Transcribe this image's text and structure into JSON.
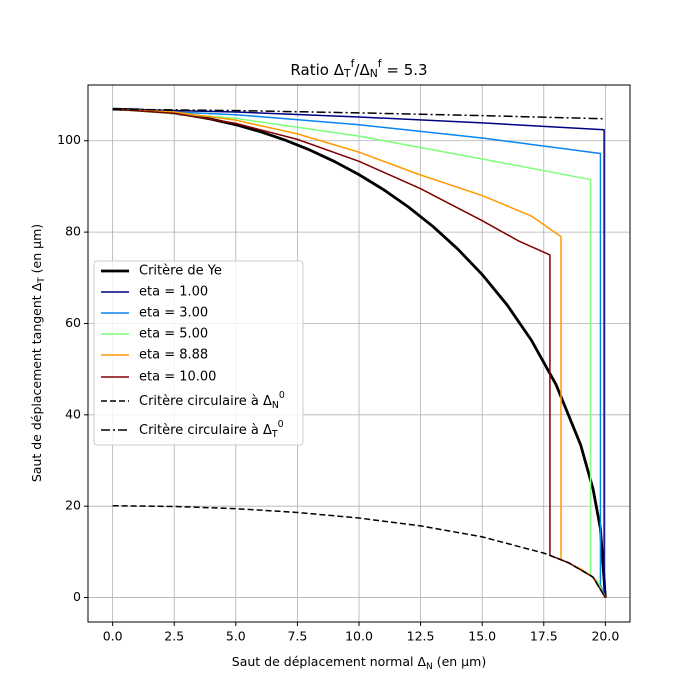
{
  "chart_data": {
    "type": "line",
    "title": [
      "Ratio Δ",
      {
        "sub": "T"
      },
      {
        "sup": "f"
      },
      "/Δ",
      {
        "sub": "N"
      },
      {
        "sup": "f"
      },
      " = 5.3"
    ],
    "x_label": [
      "Saut de déplacement normal Δ",
      {
        "sub": "N"
      },
      " (en μm)"
    ],
    "y_label": [
      "Saut de déplacement tangent Δ",
      {
        "sub": "T"
      },
      " (en μm)"
    ],
    "xlim": [
      -1,
      21
    ],
    "ylim": [
      -5.35,
      112.2
    ],
    "xticks": [
      {
        "value": 0,
        "label": "0.0"
      },
      {
        "value": 2.5,
        "label": "2.5"
      },
      {
        "value": 5,
        "label": "5.0"
      },
      {
        "value": 7.5,
        "label": "7.5"
      },
      {
        "value": 10,
        "label": "10.0"
      },
      {
        "value": 12.5,
        "label": "12.5"
      },
      {
        "value": 15,
        "label": "15.0"
      },
      {
        "value": 17.5,
        "label": "17.5"
      },
      {
        "value": 20,
        "label": "20.0"
      }
    ],
    "yticks": [
      0,
      20,
      40,
      60,
      80,
      100
    ],
    "grid": true,
    "legend": "center left",
    "series": [
      {
        "name": "Critère de Ye",
        "color": "#000000",
        "width": 2.8,
        "dash": "solid",
        "x": [
          0,
          1,
          2,
          3,
          4,
          5,
          6,
          7,
          8,
          9,
          10,
          11,
          12,
          13,
          14,
          15,
          16,
          17,
          18,
          19,
          19.5,
          19.8,
          20
        ],
        "y": [
          106.9,
          106.77,
          106.36,
          105.69,
          104.74,
          103.51,
          101.98,
          100.14,
          97.98,
          95.47,
          92.58,
          89.28,
          85.52,
          81.24,
          76.34,
          70.71,
          64.14,
          56.31,
          46.6,
          33.38,
          23.75,
          15.08,
          0
        ]
      },
      {
        "name": "eta = 1.00",
        "color": "#000080",
        "width": 1.5,
        "dash": "solid",
        "x": [
          0,
          5,
          10,
          15,
          19.95,
          19.95,
          20
        ],
        "y": [
          106.9,
          106.3,
          105.2,
          103.9,
          102.4,
          3,
          0
        ]
      },
      {
        "name": "eta = 3.00",
        "color": "#0a84f0",
        "width": 1.5,
        "dash": "solid",
        "x": [
          0,
          5,
          10,
          15,
          19.8,
          19.8,
          20
        ],
        "y": [
          106.9,
          105.7,
          103.5,
          100.6,
          97.2,
          2.84,
          0
        ]
      },
      {
        "name": "eta = 5.00",
        "color": "#7cff79",
        "width": 1.5,
        "dash": "solid",
        "x": [
          0,
          5,
          10,
          15,
          19.4,
          19.4,
          19.7,
          20
        ],
        "y": [
          106.9,
          104.9,
          101.0,
          96.0,
          91.5,
          4.89,
          3.47,
          0
        ]
      },
      {
        "name": "eta = 8.88",
        "color": "#ff9a00",
        "width": 1.5,
        "dash": "solid",
        "x": [
          0,
          2.5,
          5,
          7.5,
          10,
          12.5,
          15,
          17,
          18.2,
          18.2,
          19,
          19.5,
          20
        ],
        "y": [
          106.9,
          106.3,
          104.5,
          101.5,
          97.5,
          92.5,
          88,
          83.5,
          79,
          8.33,
          6.28,
          4.47,
          0
        ]
      },
      {
        "name": "eta = 10.00",
        "color": "#800000",
        "width": 1.5,
        "dash": "solid",
        "x": [
          0,
          2.5,
          5,
          7.5,
          10,
          12.5,
          15,
          16.5,
          17.75,
          17.75,
          18.5,
          19.5,
          20
        ],
        "y": [
          106.9,
          106.0,
          103.8,
          100.3,
          95.5,
          89.5,
          82.5,
          78,
          75,
          9.26,
          7.64,
          4.47,
          0
        ]
      },
      {
        "name": [
          "Critère circulaire à Δ",
          {
            "sub": "N"
          },
          {
            "sup": "0"
          }
        ],
        "color": "#000000",
        "width": 1.5,
        "dash": "dashed",
        "x": [
          0,
          2.5,
          5,
          7.5,
          10,
          12.5,
          15,
          17.5,
          18.5,
          19.5,
          20
        ],
        "y": [
          20.1,
          19.94,
          19.46,
          18.63,
          17.41,
          15.69,
          13.29,
          9.73,
          7.64,
          4.47,
          0
        ]
      },
      {
        "name": [
          "Critère circulaire à Δ",
          {
            "sub": "T"
          },
          {
            "sup": "0"
          }
        ],
        "color": "#000000",
        "width": 1.5,
        "dash": "dashdot",
        "x": [
          0,
          5,
          10,
          15,
          20
        ],
        "y": [
          106.9,
          106.6,
          106.1,
          105.5,
          104.8
        ]
      }
    ]
  }
}
